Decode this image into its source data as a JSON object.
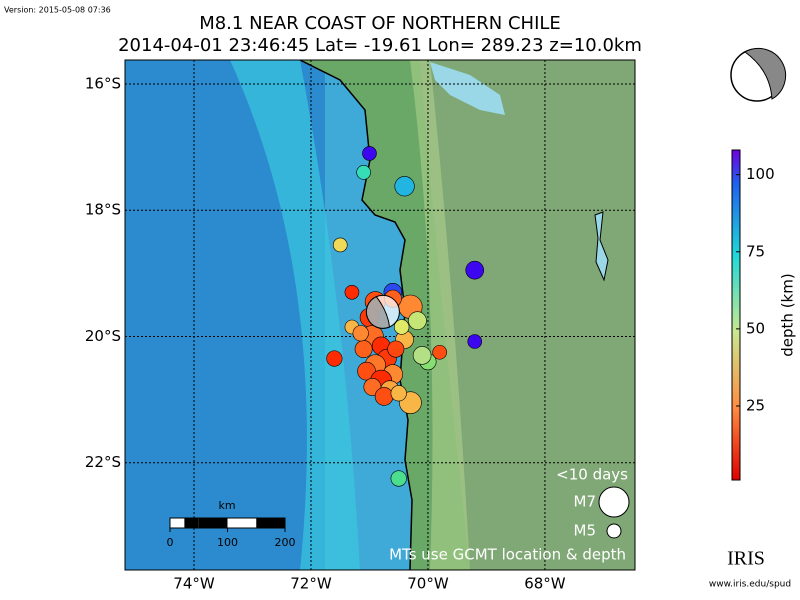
{
  "version": "Version: 2015-05-08 07:36",
  "map": {
    "title": "M8.1 NEAR COAST OF NORTHERN CHILE",
    "subtitle": "2014-04-01 23:46:45 Lat= -19.61 Lon= 289.23 z=10.0km",
    "xlim": [
      -75.18,
      -66.46
    ],
    "ylim": [
      -23.7,
      -15.62
    ],
    "lon_ticks": [
      {
        "value": -74,
        "label": "74°W"
      },
      {
        "value": -72,
        "label": "72°W"
      },
      {
        "value": -70,
        "label": "70°W"
      },
      {
        "value": -68,
        "label": "68°W"
      }
    ],
    "lat_ticks": [
      {
        "value": -16,
        "label": "16°S"
      },
      {
        "value": -18,
        "label": "18°S"
      },
      {
        "value": -20,
        "label": "20°S"
      },
      {
        "value": -22,
        "label": "22°S"
      }
    ],
    "mainshock": {
      "lon": -70.77,
      "lat": -19.61,
      "mag": 8.1
    },
    "events": [
      {
        "lon": -71.0,
        "lat": -17.1,
        "depth": 105,
        "mag": 5.0
      },
      {
        "lon": -71.1,
        "lat": -17.4,
        "depth": 70,
        "mag": 5.0
      },
      {
        "lon": -70.4,
        "lat": -17.62,
        "depth": 80,
        "mag": 5.7
      },
      {
        "lon": -71.5,
        "lat": -18.55,
        "depth": 35,
        "mag": 5.0
      },
      {
        "lon": -69.2,
        "lat": -18.95,
        "depth": 105,
        "mag": 5.5
      },
      {
        "lon": -71.3,
        "lat": -19.3,
        "depth": 10,
        "mag": 5.0
      },
      {
        "lon": -71.3,
        "lat": -19.85,
        "depth": 30,
        "mag": 5.0
      },
      {
        "lon": -71.6,
        "lat": -20.35,
        "depth": 10,
        "mag": 5.2
      },
      {
        "lon": -70.6,
        "lat": -19.3,
        "depth": 100,
        "mag": 5.5
      },
      {
        "lon": -70.3,
        "lat": -19.53,
        "depth": 25,
        "mag": 6.2
      },
      {
        "lon": -70.18,
        "lat": -19.75,
        "depth": 45,
        "mag": 5.5
      },
      {
        "lon": -69.2,
        "lat": -20.08,
        "depth": 105,
        "mag": 5.0
      },
      {
        "lon": -70.0,
        "lat": -20.4,
        "depth": 55,
        "mag": 5.3
      },
      {
        "lon": -70.1,
        "lat": -20.3,
        "depth": 50,
        "mag": 5.5
      },
      {
        "lon": -69.8,
        "lat": -20.25,
        "depth": 15,
        "mag": 5.0
      },
      {
        "lon": -70.4,
        "lat": -20.05,
        "depth": 30,
        "mag": 5.5
      },
      {
        "lon": -70.3,
        "lat": -21.05,
        "depth": 30,
        "mag": 6.0
      },
      {
        "lon": -70.5,
        "lat": -22.25,
        "depth": 65,
        "mag": 5.2
      },
      {
        "lon": -70.9,
        "lat": -19.45,
        "depth": 15,
        "mag": 5.8
      },
      {
        "lon": -71.0,
        "lat": -19.7,
        "depth": 12,
        "mag": 5.6
      },
      {
        "lon": -70.95,
        "lat": -20.0,
        "depth": 20,
        "mag": 6.0
      },
      {
        "lon": -70.8,
        "lat": -20.15,
        "depth": 10,
        "mag": 5.5
      },
      {
        "lon": -71.1,
        "lat": -20.2,
        "depth": 18,
        "mag": 5.4
      },
      {
        "lon": -70.7,
        "lat": -20.35,
        "depth": 12,
        "mag": 5.6
      },
      {
        "lon": -70.9,
        "lat": -20.45,
        "depth": 22,
        "mag": 5.8
      },
      {
        "lon": -71.05,
        "lat": -20.55,
        "depth": 15,
        "mag": 5.5
      },
      {
        "lon": -70.6,
        "lat": -20.6,
        "depth": 25,
        "mag": 5.7
      },
      {
        "lon": -70.8,
        "lat": -20.7,
        "depth": 10,
        "mag": 5.9
      },
      {
        "lon": -70.95,
        "lat": -20.8,
        "depth": 20,
        "mag": 5.4
      },
      {
        "lon": -70.65,
        "lat": -20.85,
        "depth": 28,
        "mag": 5.6
      },
      {
        "lon": -70.75,
        "lat": -20.95,
        "depth": 15,
        "mag": 5.5
      },
      {
        "lon": -70.5,
        "lat": -20.9,
        "depth": 30,
        "mag": 5.2
      },
      {
        "lon": -70.55,
        "lat": -20.2,
        "depth": 14,
        "mag": 5.3
      },
      {
        "lon": -70.45,
        "lat": -19.85,
        "depth": 40,
        "mag": 5.1
      },
      {
        "lon": -70.6,
        "lat": -19.4,
        "depth": 18,
        "mag": 5.4
      },
      {
        "lon": -71.15,
        "lat": -19.95,
        "depth": 25,
        "mag": 5.2
      }
    ]
  },
  "colorbar": {
    "label": "depth (km)",
    "lim": [
      1,
      108
    ],
    "ticks": [
      25,
      50,
      75,
      100
    ]
  },
  "legend": {
    "period": "<10 days",
    "large": "M7",
    "small": "M5",
    "note": "MTs use GCMT location & depth"
  },
  "scale": {
    "unit": "km",
    "ticks": [
      0,
      100,
      200
    ]
  },
  "logo": {
    "name": "IRIS",
    "url": "www.iris.edu/spud"
  }
}
